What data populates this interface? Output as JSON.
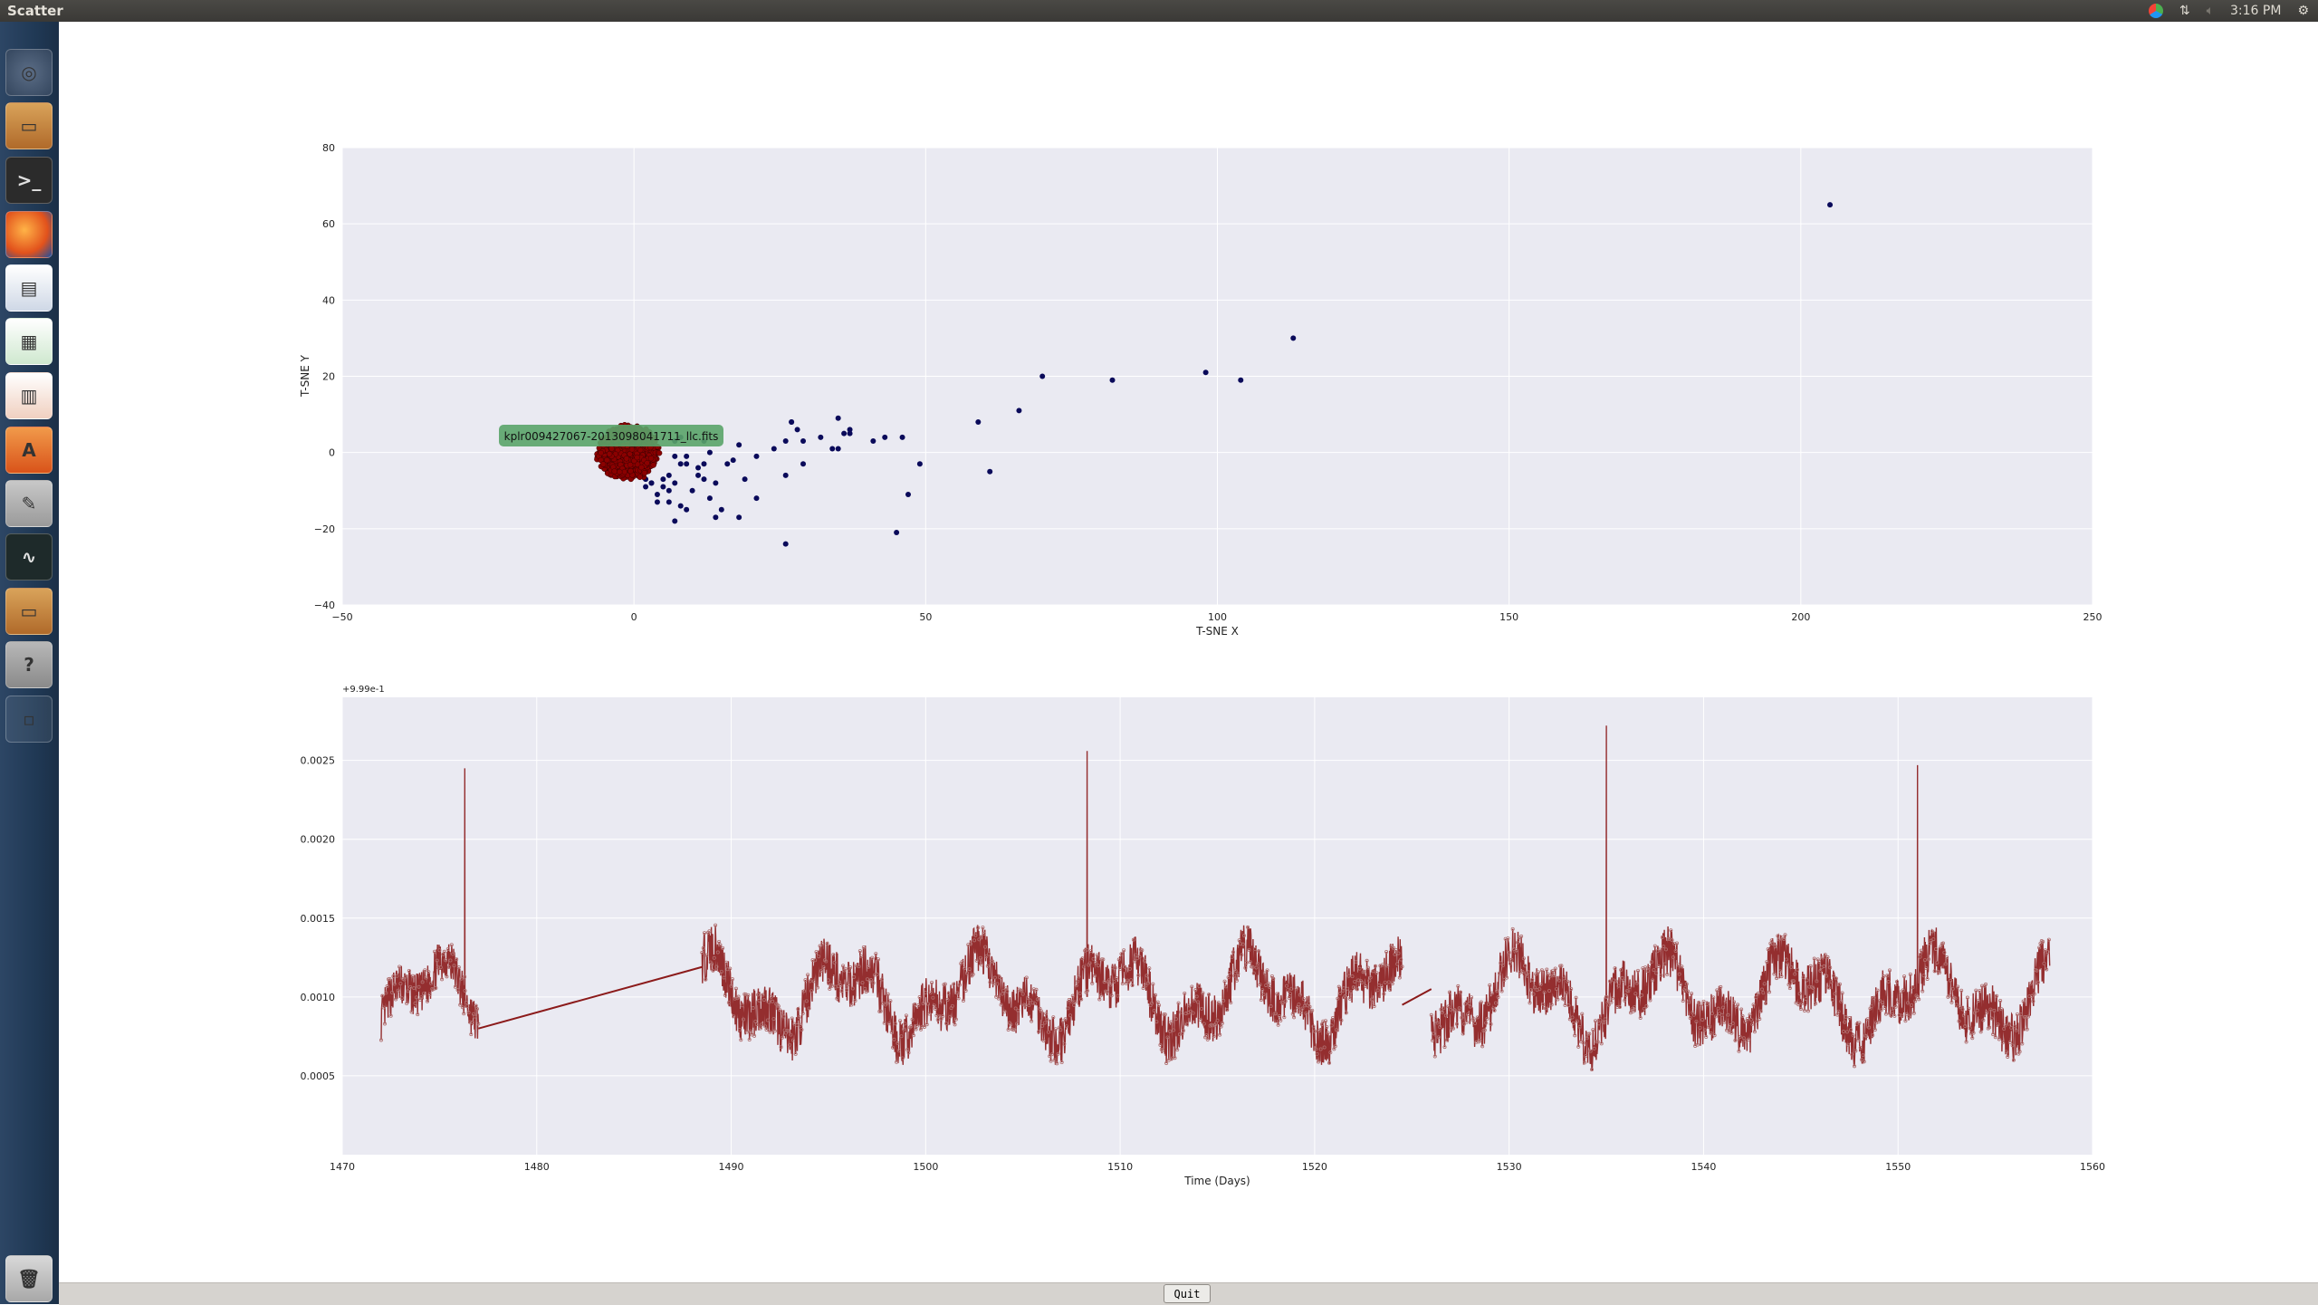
{
  "window": {
    "title": "Scatter",
    "clock": "3:16 PM"
  },
  "launcher": {
    "icons": [
      "ubuntu-dash-icon",
      "files-icon",
      "terminal-icon",
      "firefox-icon",
      "writer-icon",
      "calc-icon",
      "impress-icon",
      "software-center-icon",
      "system-settings-icon",
      "system-monitor-icon",
      "files-icon",
      "help-icon",
      "workspace-switcher-icon",
      "trash-icon"
    ]
  },
  "colors": {
    "plot_bg": "#eaeaf2",
    "grid": "#ffffff",
    "scatter_points": "#0a0a5a",
    "selected_points": "#8b0000",
    "lightcurve": "#8b1a1a",
    "tooltip_bg": "#5aa469"
  },
  "scatter": {
    "xlabel": "T-SNE X",
    "ylabel": "T-SNE Y",
    "xticks": [
      "−50",
      "0",
      "50",
      "100",
      "150",
      "200",
      "250"
    ],
    "yticks": [
      "−40",
      "−20",
      "0",
      "20",
      "40",
      "60",
      "80"
    ],
    "xlim": [
      -50,
      250
    ],
    "ylim": [
      -40,
      80
    ],
    "annotation": "kplr009427067-2013098041711_llc.fits"
  },
  "chart_data": [
    {
      "type": "scatter",
      "xlabel": "T-SNE X",
      "ylabel": "T-SNE Y",
      "xlim": [
        -50,
        250
      ],
      "ylim": [
        -40,
        80
      ],
      "grid": true,
      "points": [
        [
          205,
          65
        ],
        [
          113,
          30
        ],
        [
          70,
          20
        ],
        [
          82,
          19
        ],
        [
          98,
          21
        ],
        [
          104,
          19
        ],
        [
          66,
          11
        ],
        [
          59,
          8
        ],
        [
          61,
          -5
        ],
        [
          47,
          -11
        ],
        [
          45,
          -21
        ],
        [
          26,
          -24
        ],
        [
          49,
          -3
        ],
        [
          46,
          4
        ],
        [
          43,
          4
        ],
        [
          41,
          3
        ],
        [
          37,
          5
        ],
        [
          37,
          6
        ],
        [
          35,
          9
        ],
        [
          36,
          5
        ],
        [
          35,
          1
        ],
        [
          34,
          1
        ],
        [
          32,
          4
        ],
        [
          29,
          3
        ],
        [
          28,
          6
        ],
        [
          27,
          8
        ],
        [
          26,
          3
        ],
        [
          26,
          -6
        ],
        [
          29,
          -3
        ],
        [
          27,
          8
        ],
        [
          24,
          1
        ],
        [
          21,
          -1
        ],
        [
          19,
          -7
        ],
        [
          18,
          -17
        ],
        [
          21,
          -12
        ],
        [
          16,
          -3
        ],
        [
          17,
          -2
        ],
        [
          18,
          2
        ],
        [
          15,
          -15
        ],
        [
          14,
          -17
        ],
        [
          13,
          -12
        ],
        [
          14,
          -8
        ],
        [
          12,
          -3
        ],
        [
          13,
          0
        ],
        [
          12,
          3
        ],
        [
          11,
          -6
        ],
        [
          9,
          -3
        ],
        [
          10,
          -10
        ],
        [
          9,
          -15
        ],
        [
          8,
          -14
        ],
        [
          7,
          -18
        ],
        [
          6,
          -13
        ],
        [
          7,
          -8
        ],
        [
          8,
          -3
        ],
        [
          8,
          4
        ],
        [
          7,
          3
        ],
        [
          6,
          -10
        ],
        [
          5,
          -7
        ],
        [
          4,
          -11
        ],
        [
          3,
          -8
        ],
        [
          2,
          -9
        ],
        [
          6,
          -6
        ],
        [
          7,
          -1
        ],
        [
          9,
          -1
        ],
        [
          11,
          -4
        ],
        [
          12,
          -7
        ],
        [
          5,
          -9
        ],
        [
          4,
          -13
        ],
        [
          3,
          -8
        ],
        [
          2,
          -7
        ]
      ],
      "selected_cluster": {
        "center": [
          -1,
          0
        ],
        "approx_radius": [
          5,
          7
        ]
      },
      "annotation": "kplr009427067-2013098041711_llc.fits"
    },
    {
      "type": "line",
      "xlabel": "Time (Days)",
      "ylabel": "",
      "offset_label": "+9.99e-1",
      "xlim": [
        1470,
        1560
      ],
      "ylim": [
        0.0,
        0.0029
      ],
      "xticks": [
        "1470",
        "1480",
        "1490",
        "1500",
        "1510",
        "1520",
        "1530",
        "1540",
        "1550",
        "1560"
      ],
      "yticks": [
        "0.0005",
        "0.0010",
        "0.0015",
        "0.0020",
        "0.0025"
      ],
      "grid": true,
      "segments": [
        {
          "x_range": [
            1472.0,
            1477.0
          ],
          "base": 0.001,
          "amplitude": 0.0003,
          "spikes": [
            [
              1476.3,
              0.00245
            ]
          ]
        },
        {
          "gap_line": [
            [
              1477.0,
              0.0008
            ],
            [
              1488.5,
              0.00119
            ]
          ]
        },
        {
          "x_range": [
            1488.5,
            1524.5
          ],
          "base": 0.001,
          "amplitude": 0.00035,
          "spikes": [
            [
              1508.3,
              0.00256
            ]
          ]
        },
        {
          "gap_line": [
            [
              1524.5,
              0.00095
            ],
            [
              1526.0,
              0.00105
            ]
          ]
        },
        {
          "x_range": [
            1526.0,
            1557.8
          ],
          "base": 0.001,
          "amplitude": 0.00035,
          "spikes": [
            [
              1535.0,
              0.00272
            ],
            [
              1551.0,
              0.00247
            ]
          ]
        }
      ]
    }
  ],
  "lightcurve": {
    "xlabel": "Time (Days)",
    "ylabel": "",
    "offset_label": "+9.99e-1",
    "xticks": [
      "1470",
      "1480",
      "1490",
      "1500",
      "1510",
      "1520",
      "1530",
      "1540",
      "1550",
      "1560"
    ],
    "yticks": [
      "0.0005",
      "0.0010",
      "0.0015",
      "0.0020",
      "0.0025"
    ]
  },
  "bottom": {
    "quit_label": "Quit"
  }
}
